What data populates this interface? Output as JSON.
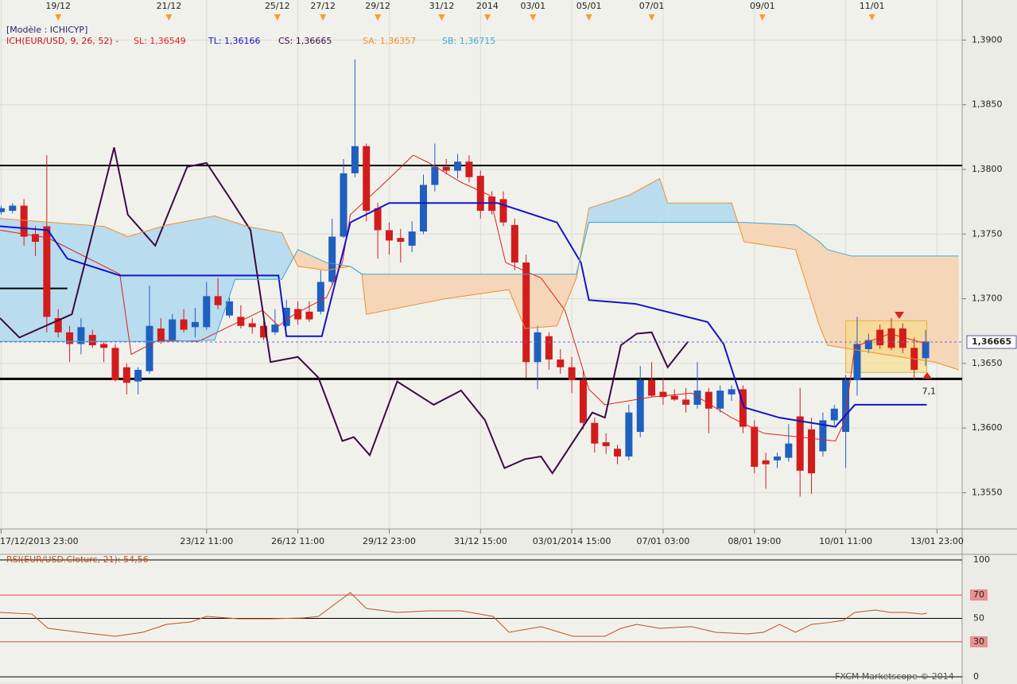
{
  "chart_data": [
    {
      "type": "candlestick",
      "header": "[Modèle : ICHICYP]",
      "indicator": "ICH(EUR/USD, 9, 26, 52) -",
      "xlim": [
        -0.1,
        84.2
      ],
      "ylim": [
        1.3522,
        1.3931
      ],
      "yticks": [
        {
          "value": 1.39,
          "label": "1,3900"
        },
        {
          "value": 1.385,
          "label": "1,3850"
        },
        {
          "value": 1.38,
          "label": "1,3800"
        },
        {
          "value": 1.375,
          "label": "1,3750"
        },
        {
          "value": 1.37,
          "label": "1,3700"
        },
        {
          "value": 1.365,
          "label": "1,3650"
        },
        {
          "value": 1.36,
          "label": "1,3600"
        },
        {
          "value": 1.355,
          "label": "1,3550"
        }
      ],
      "xticks": [
        {
          "value": 0,
          "label": "17/12/2013 23:00"
        },
        {
          "value": 18,
          "label": "23/12 11:00"
        },
        {
          "value": 26,
          "label": "26/12 11:00"
        },
        {
          "value": 34,
          "label": "29/12 23:00"
        },
        {
          "value": 42,
          "label": "31/12 15:00"
        },
        {
          "value": 50,
          "label": "03/01/2014 15:00"
        },
        {
          "value": 58,
          "label": "07/01 03:00"
        },
        {
          "value": 66,
          "label": "08/01 19:00"
        },
        {
          "value": 74,
          "label": "10/01 11:00"
        },
        {
          "value": 82,
          "label": "13/01 23:00"
        }
      ],
      "top_ticks": [
        {
          "value": 5.0,
          "label": "19/12"
        },
        {
          "value": 14.7,
          "label": "21/12"
        },
        {
          "value": 24.2,
          "label": "25/12"
        },
        {
          "value": 28.2,
          "label": "27/12"
        },
        {
          "value": 33.0,
          "label": "29/12"
        },
        {
          "value": 38.6,
          "label": "31/12"
        },
        {
          "value": 42.6,
          "label": "2014"
        },
        {
          "value": 46.6,
          "label": "03/01"
        },
        {
          "value": 51.5,
          "label": "05/01"
        },
        {
          "value": 57.0,
          "label": "07/01"
        },
        {
          "value": 66.7,
          "label": "09/01"
        },
        {
          "value": 76.3,
          "label": "11/01"
        }
      ],
      "up_color": "#1f5fbf",
      "down_color": "#d21c1c",
      "open": [
        1.3767,
        1.3768,
        1.3772,
        1.375,
        1.3756,
        1.3685,
        1.3674,
        1.3665,
        1.3672,
        1.3665,
        1.3662,
        1.3647,
        1.3636,
        1.3644,
        1.3677,
        1.3668,
        1.3684,
        1.3678,
        1.3678,
        1.3702,
        1.3687,
        1.3686,
        1.3681,
        1.3679,
        1.3674,
        1.3679,
        1.3692,
        1.369,
        1.369,
        1.3713,
        1.3748,
        1.3797,
        1.3818,
        1.377,
        1.3753,
        1.3747,
        1.3741,
        1.3752,
        1.3788,
        1.3802,
        1.3799,
        1.3806,
        1.3795,
        1.3779,
        1.3777,
        1.3757,
        1.3728,
        1.3651,
        1.3671,
        1.3653,
        1.3647,
        1.3637,
        1.3604,
        1.3589,
        1.3584,
        1.3578,
        1.3597,
        1.3637,
        1.3628,
        1.3625,
        1.3622,
        1.3618,
        1.3628,
        1.3615,
        1.3626,
        1.363,
        1.3601,
        1.3575,
        1.3575,
        1.3577,
        1.3609,
        1.3599,
        1.3582,
        1.3606,
        1.3597,
        1.3637,
        1.3661,
        1.3676,
        1.3677,
        1.3677,
        1.3662,
        1.3654
      ],
      "high": [
        1.3772,
        1.3774,
        1.3777,
        1.3756,
        1.3811,
        1.3692,
        1.3679,
        1.3685,
        1.3676,
        1.3667,
        1.3665,
        1.365,
        1.3647,
        1.371,
        1.3685,
        1.3688,
        1.3692,
        1.3693,
        1.3713,
        1.3716,
        1.3701,
        1.3695,
        1.3685,
        1.3683,
        1.3692,
        1.3699,
        1.3698,
        1.3698,
        1.3722,
        1.3762,
        1.3808,
        1.3885,
        1.382,
        1.3774,
        1.3759,
        1.3754,
        1.376,
        1.3796,
        1.382,
        1.3808,
        1.3812,
        1.3811,
        1.3799,
        1.3783,
        1.3783,
        1.3762,
        1.3734,
        1.3679,
        1.3674,
        1.3661,
        1.3655,
        1.3645,
        1.3608,
        1.3596,
        1.3587,
        1.3618,
        1.3648,
        1.3651,
        1.3639,
        1.363,
        1.3631,
        1.3651,
        1.3631,
        1.3633,
        1.3633,
        1.3633,
        1.3606,
        1.3581,
        1.3581,
        1.3603,
        1.3631,
        1.3608,
        1.3612,
        1.3618,
        1.3641,
        1.3686,
        1.3673,
        1.368,
        1.3685,
        1.3681,
        1.367,
        1.3676
      ],
      "low": [
        1.3765,
        1.3766,
        1.3741,
        1.3733,
        1.3674,
        1.367,
        1.3651,
        1.3657,
        1.3662,
        1.3651,
        1.3636,
        1.3626,
        1.3626,
        1.3642,
        1.3665,
        1.3667,
        1.3674,
        1.367,
        1.3676,
        1.3692,
        1.3685,
        1.3677,
        1.3673,
        1.3668,
        1.3672,
        1.3678,
        1.368,
        1.3682,
        1.3688,
        1.371,
        1.3747,
        1.3794,
        1.376,
        1.3731,
        1.3734,
        1.3728,
        1.3736,
        1.375,
        1.3783,
        1.3796,
        1.3793,
        1.379,
        1.3762,
        1.3765,
        1.3756,
        1.3722,
        1.3639,
        1.363,
        1.3645,
        1.3642,
        1.3627,
        1.3599,
        1.3581,
        1.358,
        1.3572,
        1.3575,
        1.3593,
        1.3624,
        1.3618,
        1.3621,
        1.3612,
        1.3615,
        1.3596,
        1.3612,
        1.3621,
        1.3596,
        1.3565,
        1.3553,
        1.3569,
        1.3574,
        1.3547,
        1.3549,
        1.3578,
        1.3602,
        1.3569,
        1.3625,
        1.3658,
        1.3661,
        1.366,
        1.3658,
        1.3637,
        1.3648
      ],
      "close": [
        1.377,
        1.3772,
        1.3748,
        1.3744,
        1.3686,
        1.3674,
        1.3665,
        1.3678,
        1.3664,
        1.3662,
        1.3637,
        1.3635,
        1.3645,
        1.3679,
        1.3667,
        1.3684,
        1.3676,
        1.3682,
        1.3702,
        1.3695,
        1.3698,
        1.3679,
        1.3678,
        1.367,
        1.368,
        1.3693,
        1.3684,
        1.3684,
        1.3713,
        1.3748,
        1.3797,
        1.3818,
        1.3768,
        1.3753,
        1.3745,
        1.3744,
        1.3752,
        1.3788,
        1.3802,
        1.3799,
        1.3806,
        1.3794,
        1.3768,
        1.3768,
        1.3759,
        1.3728,
        1.3651,
        1.3674,
        1.3653,
        1.3647,
        1.3637,
        1.3604,
        1.3588,
        1.3586,
        1.3578,
        1.3612,
        1.3637,
        1.3625,
        1.3624,
        1.3622,
        1.3618,
        1.3629,
        1.3615,
        1.3629,
        1.363,
        1.3601,
        1.357,
        1.3572,
        1.3578,
        1.3588,
        1.3567,
        1.3565,
        1.3606,
        1.3615,
        1.3637,
        1.3665,
        1.3668,
        1.3664,
        1.3662,
        1.3662,
        1.3645,
        1.3667
      ],
      "series": [
        {
          "name": "SL: 1,36549",
          "color": "#e0201c",
          "width": 1,
          "x": [
            -0.1,
            4.1,
            10.4,
            11.4,
            13.8,
            17.3,
            22.9,
            24.3,
            25.7,
            28.5,
            29.9,
            30.6,
            34.0,
            36.1,
            37.5,
            40.3,
            42.8,
            44.2,
            47.3,
            49.4,
            51.5,
            52.9,
            57.0,
            60.5,
            64.0,
            66.8,
            73.1,
            73.9,
            74.8,
            77.9,
            81.1
          ],
          "values": [
            1.3753,
            1.3747,
            1.3719,
            1.3657,
            1.3668,
            1.3667,
            1.3691,
            1.3679,
            1.3688,
            1.3701,
            1.3728,
            1.3765,
            1.3793,
            1.3811,
            1.3805,
            1.379,
            1.378,
            1.3728,
            1.3716,
            1.3691,
            1.363,
            1.3618,
            1.3624,
            1.3627,
            1.3608,
            1.3596,
            1.359,
            1.3605,
            1.3663,
            1.3673,
            1.3665
          ]
        },
        {
          "name": "TL: 1,36166",
          "color": "#1414c8",
          "width": 2,
          "x": [
            -0.1,
            4.1,
            5.8,
            10.4,
            24.3,
            25.0,
            28.1,
            30.6,
            34.0,
            43.5,
            48.7,
            50.8,
            51.5,
            55.6,
            61.9,
            63.3,
            65.1,
            68.2,
            73.1,
            74.8,
            81.1
          ],
          "values": [
            1.3756,
            1.3753,
            1.3731,
            1.3718,
            1.3718,
            1.3671,
            1.3671,
            1.3759,
            1.3774,
            1.3774,
            1.3759,
            1.3728,
            1.3699,
            1.3696,
            1.3682,
            1.3665,
            1.3616,
            1.3608,
            1.3601,
            1.3618,
            1.3618
          ]
        },
        {
          "name": "CS: 1,36665",
          "color": "#3c0a46",
          "width": 2,
          "x": [
            -0.1,
            1.6,
            6.2,
            7.9,
            9.9,
            11.1,
            13.5,
            16.3,
            18.0,
            20.1,
            21.85,
            23.6,
            26.0,
            27.8,
            29.9,
            30.9,
            32.3,
            34.7,
            37.9,
            40.3,
            42.4,
            44.1,
            45.9,
            47.3,
            48.3,
            51.8,
            52.9,
            54.3,
            55.7,
            57.0,
            58.4,
            60.2
          ],
          "values": [
            1.3685,
            1.367,
            1.3688,
            1.3747,
            1.3817,
            1.3765,
            1.3741,
            1.3802,
            1.3805,
            1.3777,
            1.3753,
            1.3651,
            1.3655,
            1.3639,
            1.359,
            1.3593,
            1.3579,
            1.3636,
            1.3618,
            1.3629,
            1.3606,
            1.3569,
            1.3576,
            1.3578,
            1.3565,
            1.3612,
            1.3608,
            1.3664,
            1.3673,
            1.3674,
            1.3647,
            1.3667
          ]
        },
        {
          "name": "SA: 1,36357",
          "color": "#f0902a",
          "width": 1,
          "x": [
            -0.1,
            9.0,
            11.1,
            14.5,
            18.7,
            20.5,
            21.5,
            24.6,
            26.0,
            28.5,
            30.6,
            31.6,
            32.0,
            38.9,
            44.5,
            45.9,
            48.7,
            50.4,
            51.5,
            55.0,
            57.7,
            58.4,
            64.0,
            65.1,
            69.6,
            71.7,
            72.4,
            74.5,
            76.6,
            81.8,
            83.9
          ],
          "values": [
            1.3762,
            1.3756,
            1.3748,
            1.3757,
            1.3764,
            1.3759,
            1.3756,
            1.3751,
            1.3725,
            1.3722,
            1.3725,
            1.3719,
            1.3688,
            1.37,
            1.3707,
            1.3677,
            1.3679,
            1.3716,
            1.377,
            1.378,
            1.3793,
            1.3774,
            1.3774,
            1.3744,
            1.3738,
            1.3679,
            1.3664,
            1.3661,
            1.3658,
            1.3651,
            1.3645
          ]
        },
        {
          "name": "SB: 1,36715",
          "color": "#38a8d8",
          "width": 1,
          "x": [
            -0.1,
            9.0,
            11.1,
            14.5,
            18.7,
            20.5,
            21.5,
            24.6,
            26.0,
            28.5,
            30.6,
            31.6,
            32.0,
            38.9,
            44.5,
            45.9,
            48.7,
            50.4,
            51.5,
            55.0,
            57.7,
            58.4,
            64.0,
            65.1,
            69.6,
            71.7,
            72.4,
            74.5,
            76.6,
            81.8,
            83.9
          ],
          "values": [
            1.3667,
            1.3667,
            1.3667,
            1.3667,
            1.3668,
            1.3715,
            1.3715,
            1.3715,
            1.3738,
            1.3728,
            1.3725,
            1.3719,
            1.3719,
            1.3719,
            1.3719,
            1.3719,
            1.3719,
            1.3719,
            1.3759,
            1.3759,
            1.3759,
            1.3759,
            1.3759,
            1.3759,
            1.3757,
            1.3744,
            1.3738,
            1.3733,
            1.3733,
            1.3733,
            1.3733
          ]
        }
      ],
      "cloud_colors": [
        "#b9dcee",
        "#f6d6b8"
      ],
      "hlines": [
        {
          "value": 1.3803
        },
        {
          "value": 1.3638
        },
        {
          "value": 1.3708,
          "x": [
            -0.1,
            5.8
          ]
        }
      ],
      "highlight": {
        "x": [
          74,
          81.1
        ],
        "y": [
          1.3643,
          1.3683
        ]
      },
      "annotation": "7,1",
      "last": {
        "value": 1.36665,
        "label": "1,36665"
      },
      "grid": true
    },
    {
      "type": "line",
      "title": "RSI(EUR/USD.Cloturc, 21): 54,56",
      "color": "#c0501a",
      "ylim": [
        0,
        100
      ],
      "yticks": [
        100,
        70,
        50,
        30,
        0
      ],
      "level_colors": [
        "#000000",
        "#e04848",
        "#000000",
        "#e04848",
        "#000000"
      ],
      "x": [
        -0.1,
        2.7,
        4.1,
        6.9,
        10.0,
        12.4,
        14.5,
        16.6,
        18.0,
        20.8,
        23.6,
        26.4,
        27.8,
        29.2,
        30.6,
        32.0,
        34.7,
        37.5,
        40.3,
        43.1,
        44.5,
        47.3,
        50.1,
        52.9,
        54.3,
        55.7,
        57.7,
        60.5,
        62.6,
        65.4,
        66.8,
        68.2,
        69.6,
        71.0,
        72.4,
        73.8,
        74.8,
        76.6,
        77.9,
        79.3,
        80.7,
        81.1
      ],
      "values": [
        55.1,
        53.7,
        41.5,
        38.1,
        34.7,
        38.1,
        44.9,
        46.9,
        51.7,
        49.7,
        49.7,
        50.3,
        51.7,
        61.9,
        72.1,
        58.5,
        55.1,
        56.5,
        56.5,
        51.7,
        38.1,
        42.9,
        34.7,
        34.7,
        41.5,
        44.9,
        41.5,
        42.9,
        38.1,
        36.7,
        38.1,
        44.9,
        38.1,
        44.9,
        46.3,
        48.3,
        55.1,
        57.1,
        55.1,
        55.1,
        53.7,
        54.4
      ],
      "credit": "FXCM Marketscope © 2014"
    }
  ]
}
